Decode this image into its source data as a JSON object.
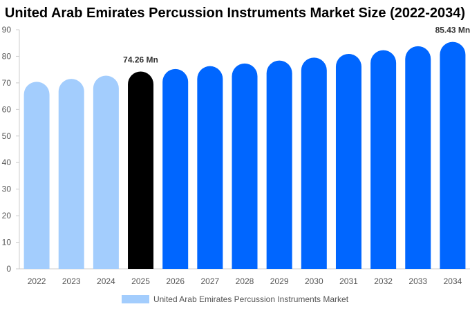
{
  "chart_data": {
    "type": "bar",
    "title": "United Arab Emirates Percussion Instruments Market Size (2022-2034)",
    "categories": [
      "2022",
      "2023",
      "2024",
      "2025",
      "2026",
      "2027",
      "2028",
      "2029",
      "2030",
      "2031",
      "2032",
      "2033",
      "2034"
    ],
    "series": [
      {
        "name": "United Arab Emirates Percussion Instruments Market",
        "values": [
          70.4,
          71.5,
          72.7,
          74.26,
          75.2,
          76.3,
          77.3,
          78.4,
          79.5,
          80.9,
          82.3,
          83.8,
          85.43
        ]
      }
    ],
    "bar_colors": [
      "#a3cdfd",
      "#a3cdfd",
      "#a3cdfd",
      "#000000",
      "#0066ff",
      "#0066ff",
      "#0066ff",
      "#0066ff",
      "#0066ff",
      "#0066ff",
      "#0066ff",
      "#0066ff",
      "#0066ff"
    ],
    "data_labels": [
      {
        "category": "2025",
        "text": "74.26 Mn"
      },
      {
        "category": "2034",
        "text": "85.43 Mn"
      }
    ],
    "ylim": [
      0,
      90
    ],
    "yticks": [
      0,
      10,
      20,
      30,
      40,
      50,
      60,
      70,
      80,
      90
    ],
    "xlabel": "",
    "ylabel": "",
    "grid": false,
    "legend_position": "bottom",
    "legend_color": "#a3cdfd"
  }
}
